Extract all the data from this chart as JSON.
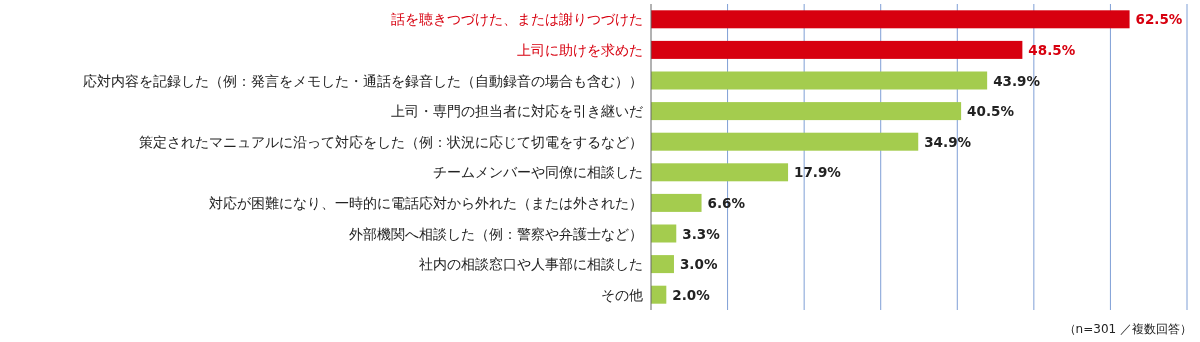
{
  "chart_data": {
    "type": "bar",
    "orientation": "horizontal",
    "categories": [
      "話を聴きつづけた、または謝りつづけた",
      "上司に助けを求めた",
      "応対内容を記録した（例：発言をメモした・通話を録音した（自動録音の場合も含む））",
      "上司・専門の担当者に対応を引き継いだ",
      "策定されたマニュアルに沿って対応をした（例：状況に応じて切電をするなど）",
      "チームメンバーや同僚に相談した",
      "対応が困難になり、一時的に電話応対から外れた（または外された）",
      "外部機関へ相談した（例：警察や弁護士など）",
      "社内の相談窓口や人事部に相談した",
      "その他"
    ],
    "values": [
      62.5,
      48.5,
      43.9,
      40.5,
      34.9,
      17.9,
      6.6,
      3.3,
      3.0,
      2.0
    ],
    "value_labels": [
      "62.5%",
      "48.5%",
      "43.9%",
      "40.5%",
      "34.9%",
      "17.9%",
      "6.6%",
      "3.3%",
      "3.0%",
      "2.0%"
    ],
    "colors": [
      "#d7000f",
      "#d7000f",
      "#a4cc4e",
      "#a4cc4e",
      "#a4cc4e",
      "#a4cc4e",
      "#a4cc4e",
      "#a4cc4e",
      "#a4cc4e",
      "#a4cc4e"
    ],
    "xlim": [
      0,
      70
    ],
    "xticks": [
      {
        "value": 0,
        "label": null
      },
      {
        "value": 10,
        "label": null
      },
      {
        "value": 20,
        "label": null
      },
      {
        "value": 30,
        "label": null
      },
      {
        "value": 40,
        "label": null
      },
      {
        "value": 50,
        "label": null
      },
      {
        "value": 60,
        "label": null
      },
      {
        "value": 70,
        "label": null
      }
    ],
    "grid": "x",
    "annotations": [
      "（n=301 ／複数回答）"
    ]
  }
}
